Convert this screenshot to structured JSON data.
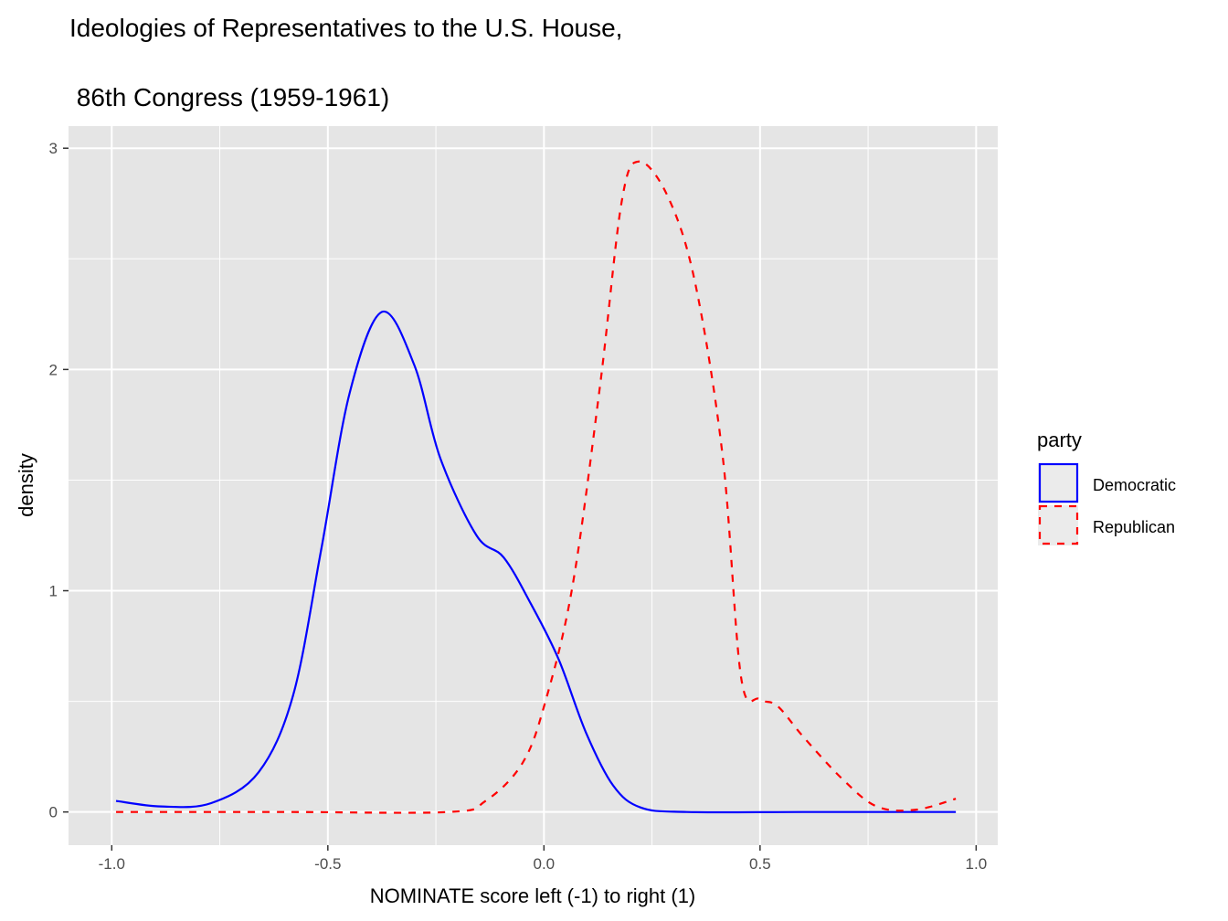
{
  "chart_data": {
    "type": "line",
    "title": "Ideologies of Representatives to the U.S. House,",
    "subtitle": " 86th Congress (1959-1961)",
    "xlabel": "NOMINATE score left (-1) to right (1)",
    "ylabel": "density",
    "xlim": [
      -1.1,
      1.05
    ],
    "ylim": [
      -0.15,
      3.1
    ],
    "xticks": [
      -1.0,
      -0.5,
      0.0,
      0.5,
      1.0
    ],
    "xtick_labels": [
      "-1.0",
      "-0.5",
      "0.0",
      "0.5",
      "1.0"
    ],
    "yticks": [
      0,
      1,
      2,
      3
    ],
    "ytick_labels": [
      "0",
      "1",
      "2",
      "3"
    ],
    "grid": true,
    "legend": {
      "title": "party",
      "position": "right"
    },
    "series": [
      {
        "name": "Democratic",
        "color": "#0000ff",
        "linetype": "solid",
        "x": [
          -0.99,
          -0.886,
          -0.77,
          -0.66,
          -0.58,
          -0.515,
          -0.45,
          -0.375,
          -0.3,
          -0.24,
          -0.156,
          -0.093,
          -0.03,
          0.034,
          0.097,
          0.16,
          0.224,
          0.33,
          0.6,
          0.953
        ],
        "y": [
          0.05,
          0.025,
          0.04,
          0.18,
          0.53,
          1.19,
          1.89,
          2.26,
          2.02,
          1.6,
          1.25,
          1.15,
          0.94,
          0.69,
          0.36,
          0.12,
          0.02,
          0,
          0,
          0
        ]
      },
      {
        "name": "Republican",
        "color": "#ff0000",
        "linetype": "dashed",
        "x": [
          -0.99,
          -0.6,
          -0.22,
          -0.135,
          -0.05,
          0.002,
          0.066,
          0.13,
          0.18,
          0.22,
          0.287,
          0.35,
          0.414,
          0.456,
          0.499,
          0.54,
          0.6,
          0.69,
          0.77,
          0.86,
          0.953
        ],
        "y": [
          0,
          0,
          0,
          0.05,
          0.22,
          0.49,
          1.02,
          1.93,
          2.76,
          2.94,
          2.78,
          2.39,
          1.6,
          0.61,
          0.51,
          0.48,
          0.34,
          0.15,
          0.025,
          0.01,
          0.06
        ]
      }
    ]
  }
}
